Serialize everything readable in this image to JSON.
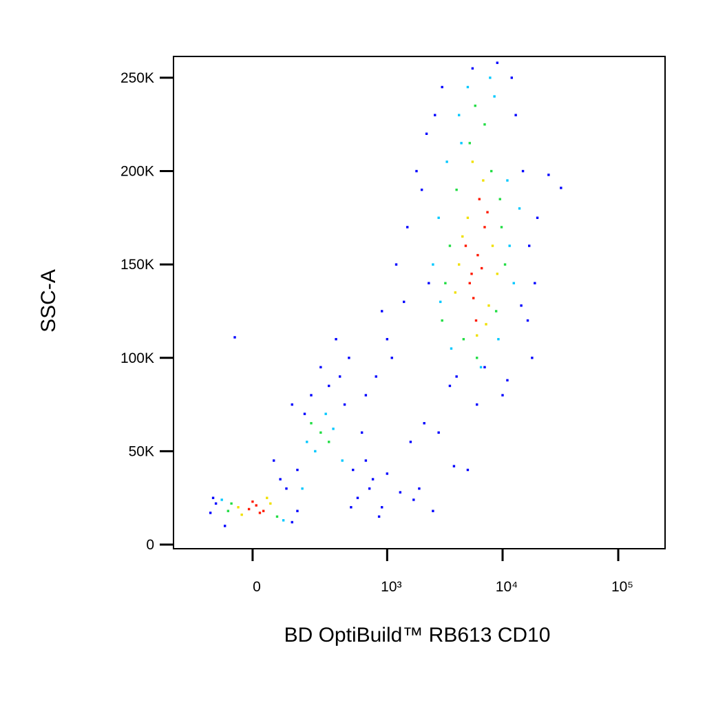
{
  "chart_data": {
    "type": "scatter",
    "xlabel": "BD OptiBuild™ RB613 CD10",
    "ylabel": "SSC-A",
    "xscale": "biexponential",
    "xlim": [
      -319,
      254000
    ],
    "ylim": [
      -2200,
      261400
    ],
    "xticks": [
      0,
      {
        "value": 1000,
        "label": "10³"
      },
      {
        "value": 10000,
        "label": "10⁴"
      },
      {
        "value": 100000,
        "label": "10⁵"
      }
    ],
    "yticks": [
      0,
      {
        "value": 50000,
        "label": "50K"
      },
      {
        "value": 100000,
        "label": "100K"
      },
      {
        "value": 150000,
        "label": "150K"
      },
      {
        "value": 200000,
        "label": "200K"
      },
      {
        "value": 250000,
        "label": "250K"
      }
    ],
    "series": [
      {
        "color": "#0000ff",
        "x": [
          2000,
          2300,
          1800,
          1500,
          1200,
          2600,
          15000,
          17000,
          16500,
          13000,
          20000,
          19000,
          1000,
          800,
          650,
          900,
          1400,
          1100,
          3000,
          5500,
          9000,
          12000,
          7000,
          4000,
          2200,
          18000,
          25000,
          32000,
          11000,
          3500,
          600,
          500,
          420,
          380,
          700,
          550,
          460,
          350,
          300,
          250,
          200,
          170,
          140,
          120,
          480,
          650,
          850,
          1000,
          1300,
          1700,
          2500,
          1600,
          -130,
          -110,
          120,
          140,
          -80,
          100,
          80,
          -120,
          60,
          -50,
          2800,
          5000,
          6000,
          3800,
          1900,
          750,
          900,
          2100,
          10000,
          14500
        ],
        "values": [
          190000,
          140000,
          200000,
          170000,
          150000,
          230000,
          200000,
          160000,
          120000,
          230000,
          175000,
          140000,
          110000,
          90000,
          80000,
          125000,
          130000,
          100000,
          245000,
          255000,
          258000,
          250000,
          95000,
          90000,
          220000,
          100000,
          198000,
          191000,
          88000,
          85000,
          60000,
          40000,
          75000,
          90000,
          30000,
          25000,
          100000,
          110000,
          85000,
          95000,
          80000,
          70000,
          40000,
          75000,
          20000,
          45000,
          15000,
          38000,
          28000,
          24000,
          18000,
          55000,
          17000,
          22000,
          12000,
          18000,
          10000,
          30000,
          35000,
          25000,
          45000,
          111000,
          60000,
          40000,
          75000,
          42000,
          30000,
          35000,
          20000,
          65000,
          80000,
          128000
        ]
      },
      {
        "color": "#00c8ff",
        "x": [
          2800,
          11500,
          3300,
          12500,
          2500,
          4200,
          9200,
          6500,
          5000,
          8500,
          3600,
          11000,
          7800,
          14000,
          4400,
          2900,
          -90,
          90,
          160,
          220,
          330,
          280,
          180,
          400
        ],
        "values": [
          175000,
          160000,
          205000,
          140000,
          150000,
          230000,
          110000,
          95000,
          245000,
          240000,
          105000,
          195000,
          250000,
          180000,
          215000,
          130000,
          24000,
          13000,
          30000,
          50000,
          62000,
          70000,
          55000,
          45000
        ]
      },
      {
        "color": "#22dd44",
        "x": [
          3500,
          9800,
          4000,
          8800,
          3200,
          5200,
          7000,
          10500,
          3000,
          6000,
          4600,
          8000,
          9500,
          5800,
          -60,
          70,
          -70,
          250,
          300,
          200
        ],
        "values": [
          160000,
          170000,
          190000,
          125000,
          140000,
          215000,
          225000,
          150000,
          120000,
          100000,
          110000,
          200000,
          185000,
          235000,
          22000,
          15000,
          18000,
          60000,
          55000,
          65000
        ]
      },
      {
        "color": "#f0e000",
        "x": [
          4200,
          8200,
          5000,
          7600,
          3900,
          6800,
          9000,
          4500,
          6000,
          7200,
          5500,
          -40,
          50,
          -30,
          40
        ],
        "values": [
          150000,
          160000,
          175000,
          128000,
          135000,
          195000,
          145000,
          165000,
          112000,
          118000,
          205000,
          20000,
          22000,
          16000,
          25000
        ]
      },
      {
        "color": "#ff1a00",
        "x": [
          5200,
          6100,
          7000,
          5600,
          6600,
          4800,
          7400,
          5900,
          6300,
          5400,
          -10,
          10,
          30,
          0,
          20
        ],
        "values": [
          140000,
          155000,
          170000,
          132000,
          148000,
          160000,
          178000,
          120000,
          185000,
          145000,
          19000,
          21000,
          18000,
          23000,
          17000
        ]
      }
    ]
  }
}
